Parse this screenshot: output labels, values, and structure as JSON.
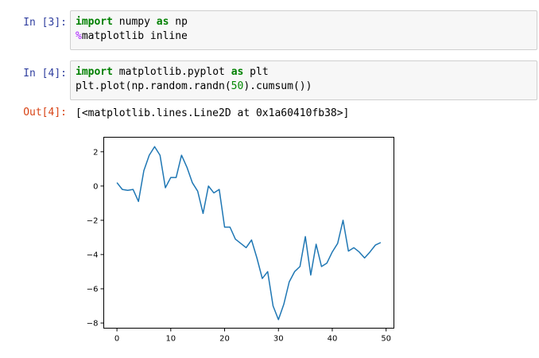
{
  "cells": [
    {
      "prompt": "In  [3]:",
      "line1": {
        "kw1": "import",
        "mod": " numpy ",
        "kw2": "as",
        "alias": " np"
      },
      "line2": {
        "magic_sym": "%",
        "magic": "matplotlib inline"
      }
    },
    {
      "prompt": "In  [4]:",
      "line1": {
        "kw1": "import",
        "mod": " matplotlib.pyplot ",
        "kw2": "as",
        "alias": " plt"
      },
      "line2": {
        "pre": "plt.plot(np.random.randn(",
        "num": "50",
        "post": ").cumsum())"
      }
    }
  ],
  "output": {
    "prompt": "Out[4]:",
    "text": "[<matplotlib.lines.Line2D at 0x1a60410fb38>]"
  },
  "chart_data": {
    "type": "line",
    "xlim": [
      -2.45,
      51.45
    ],
    "ylim": [
      -8.3,
      2.85
    ],
    "xticks": [
      0,
      10,
      20,
      30,
      40,
      50
    ],
    "yticks": [
      2,
      0,
      -2,
      -4,
      -6,
      -8
    ],
    "xtick_labels": [
      "0",
      "10",
      "20",
      "30",
      "40",
      "50"
    ],
    "ytick_labels": [
      "2",
      "0",
      "−2",
      "−4",
      "−6",
      "−8"
    ],
    "line_color": "#1f77b4",
    "series": [
      {
        "x": [
          0,
          1,
          2,
          3,
          4,
          5,
          6,
          7,
          8,
          9,
          10,
          11,
          12,
          13,
          14,
          15,
          16,
          17,
          18,
          19,
          20,
          21,
          22,
          23,
          24,
          25,
          26,
          27,
          28,
          29,
          30,
          31,
          32,
          33,
          34,
          35,
          36,
          37,
          38,
          39,
          40,
          41,
          42,
          43,
          44,
          45,
          46,
          47,
          48,
          49
        ],
        "values": [
          0.2,
          -0.2,
          -0.25,
          -0.2,
          -0.9,
          0.9,
          1.8,
          2.3,
          1.8,
          -0.1,
          0.5,
          0.5,
          1.8,
          1.1,
          0.2,
          -0.3,
          -1.6,
          0.0,
          -0.4,
          -0.2,
          -2.4,
          -2.4,
          -3.1,
          -3.35,
          -3.6,
          -3.15,
          -4.2,
          -5.4,
          -5.0,
          -7.0,
          -7.8,
          -6.9,
          -5.6,
          -5.0,
          -4.7,
          -2.95,
          -5.2,
          -3.4,
          -4.7,
          -4.5,
          -3.85,
          -3.35,
          -2.0,
          -3.8,
          -3.6,
          -3.85,
          -4.2,
          -3.85,
          -3.45,
          -3.3
        ]
      }
    ]
  }
}
